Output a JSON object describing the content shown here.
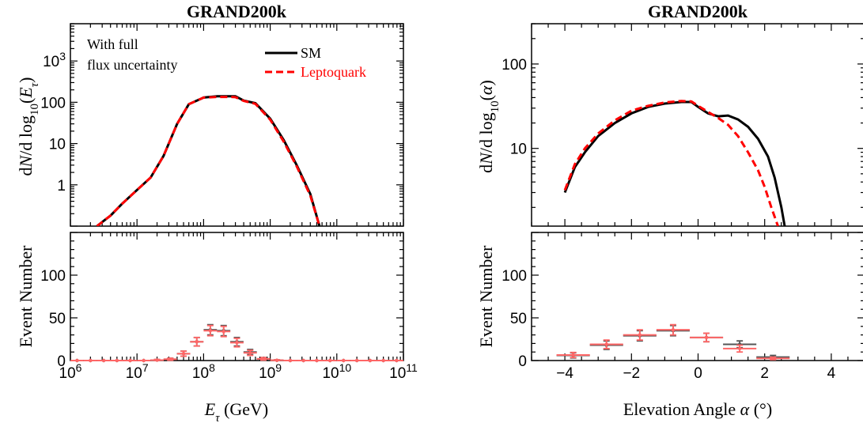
{
  "chart_data": [
    {
      "type": "line",
      "panel": "top-left",
      "title": "GRAND200k",
      "ylabel": "dN/dlog10(Eτ)",
      "xscale": "log",
      "yscale": "log",
      "xlim": [
        1000000.0,
        100000000000.0
      ],
      "ylim": [
        0.1,
        8000
      ],
      "xticks": [
        "10^6",
        "10^7",
        "10^8",
        "10^9",
        "10^10",
        "10^11"
      ],
      "yticks": [
        "1",
        "10",
        "100",
        "10^3"
      ],
      "annotation": [
        "With full",
        "flux uncertainty"
      ],
      "legend": {
        "position": "top-right"
      },
      "series": [
        {
          "name": "SM",
          "color": "#000000",
          "style": "solid",
          "x": [
            2500000.0,
            4000000.0,
            6000000.0,
            10000000.0,
            16000000.0,
            25000000.0,
            40000000.0,
            60000000.0,
            100000000.0,
            160000000.0,
            200000000.0,
            250000000.0,
            300000000.0,
            400000000.0,
            600000000.0,
            1000000000.0,
            1600000000.0,
            2500000000.0,
            4000000000.0,
            5500000000.0
          ],
          "y": [
            0.1,
            0.18,
            0.35,
            0.75,
            1.5,
            5,
            30,
            90,
            130,
            140,
            140,
            140,
            140,
            110,
            95,
            40,
            12,
            3,
            0.6,
            0.1
          ]
        },
        {
          "name": "Leptoquark",
          "color": "#ff0000",
          "style": "dashed",
          "x": [
            2500000.0,
            4000000.0,
            6000000.0,
            10000000.0,
            16000000.0,
            25000000.0,
            40000000.0,
            60000000.0,
            100000000.0,
            160000000.0,
            200000000.0,
            250000000.0,
            300000000.0,
            400000000.0,
            600000000.0,
            1000000000.0,
            1600000000.0,
            2500000000.0,
            4000000000.0,
            5500000000.0
          ],
          "y": [
            0.1,
            0.18,
            0.35,
            0.75,
            1.5,
            5,
            30,
            90,
            130,
            135,
            135,
            135,
            133,
            108,
            92,
            38,
            11,
            2.8,
            0.55,
            0.1
          ]
        }
      ]
    },
    {
      "type": "line",
      "panel": "top-right",
      "title": "GRAND200k",
      "ylabel": "dN/dlog10(α)",
      "xscale": "linear",
      "yscale": "log",
      "xlim": [
        -5,
        5
      ],
      "ylim": [
        1.2,
        300
      ],
      "yticks": [
        "10",
        "100"
      ],
      "series": [
        {
          "name": "SM",
          "color": "#000000",
          "style": "solid",
          "x": [
            -4,
            -3.7,
            -3.4,
            -3,
            -2.5,
            -2,
            -1.5,
            -1,
            -0.5,
            -0.2,
            0,
            0.3,
            0.6,
            0.9,
            1.2,
            1.5,
            1.8,
            2.1,
            2.3,
            2.5,
            2.6
          ],
          "y": [
            3,
            6,
            9,
            14,
            20,
            26,
            31,
            34,
            35.5,
            35.5,
            31,
            26,
            24,
            24.5,
            22,
            18,
            13,
            8,
            4.5,
            2,
            1.2
          ]
        },
        {
          "name": "Leptoquark",
          "color": "#ff0000",
          "style": "dashed",
          "x": [
            -4,
            -3.7,
            -3.4,
            -3,
            -2.5,
            -2,
            -1.5,
            -1,
            -0.5,
            -0.2,
            0,
            0.3,
            0.6,
            0.9,
            1.2,
            1.5,
            1.8,
            2.0,
            2.2,
            2.4
          ],
          "y": [
            3.2,
            6.5,
            10,
            15,
            21.5,
            28,
            32,
            35,
            36.5,
            36,
            32,
            27,
            23,
            19,
            14,
            9,
            5.5,
            3.5,
            2,
            1.2
          ]
        }
      ]
    },
    {
      "type": "scatter",
      "panel": "bottom-left",
      "ylabel": "Event Number",
      "xlabel": "Eτ (GeV)",
      "xscale": "log",
      "xlim": [
        1000000.0,
        100000000000.0
      ],
      "ylim": [
        0,
        150
      ],
      "xticks": [
        "10^6",
        "10^7",
        "10^8",
        "10^9",
        "10^10",
        "10^11"
      ],
      "yticks": [
        "0",
        "50",
        "100"
      ],
      "series": [
        {
          "name": "SM",
          "color": "#555555",
          "x": [
            1260000.0,
            2000000.0,
            3160000.0,
            5000000.0,
            7900000.0,
            12600000.0,
            20000000.0,
            31600000.0,
            50000000.0,
            79000000.0,
            126000000.0,
            200000000.0,
            316000000.0,
            500000000.0,
            790000000.0,
            1260000000.0,
            2000000000.0,
            3160000000.0,
            5000000000.0,
            7900000000.0,
            12600000000.0,
            20000000000.0,
            31600000000.0,
            50000000000.0,
            79000000000.0
          ],
          "y": [
            0,
            0,
            0,
            0,
            0,
            0,
            0.5,
            1.5,
            8,
            22,
            36,
            35,
            22,
            10,
            2,
            0.3,
            0,
            0,
            0,
            0,
            0,
            0,
            0,
            0,
            0
          ],
          "err": [
            0,
            0,
            0,
            0,
            0,
            0,
            0.7,
            1.2,
            3,
            5,
            6,
            6,
            5,
            3,
            1.5,
            0.5,
            0,
            0,
            0,
            0,
            0,
            0,
            0,
            0,
            0
          ]
        },
        {
          "name": "Leptoquark",
          "color": "#ff6666",
          "x": [
            1260000.0,
            2000000.0,
            3160000.0,
            5000000.0,
            7900000.0,
            12600000.0,
            20000000.0,
            31600000.0,
            50000000.0,
            79000000.0,
            126000000.0,
            200000000.0,
            316000000.0,
            500000000.0,
            790000000.0,
            1260000000.0,
            2000000000.0,
            3160000000.0,
            5000000000.0,
            7900000000.0,
            12600000000.0,
            20000000000.0,
            31600000000.0,
            50000000000.0,
            79000000000.0
          ],
          "y": [
            0,
            0,
            0,
            0,
            0,
            0,
            0.5,
            1.5,
            8,
            22,
            35,
            34,
            21,
            9,
            2,
            0.3,
            0,
            0,
            0,
            0,
            0,
            0,
            0,
            0,
            0
          ],
          "err": [
            0,
            0,
            0,
            0,
            0,
            0,
            0.7,
            1.2,
            3,
            5,
            6,
            6,
            5,
            3,
            1.5,
            0.5,
            0,
            0,
            0,
            0,
            0,
            0,
            0,
            0,
            0
          ]
        }
      ]
    },
    {
      "type": "scatter",
      "panel": "bottom-right",
      "ylabel": "Event Number",
      "xlabel": "Elevation Angle α (°)",
      "xscale": "linear",
      "xlim": [
        -5,
        5
      ],
      "ylim": [
        0,
        150
      ],
      "xticks": [
        "−4",
        "−2",
        "0",
        "2",
        "4"
      ],
      "yticks": [
        "0",
        "50",
        "100"
      ],
      "bin_halfwidth": 0.5,
      "series": [
        {
          "name": "SM",
          "color": "#555555",
          "x": [
            -3.75,
            -2.75,
            -1.75,
            -0.75,
            0.25,
            1.25,
            2.25
          ],
          "y": [
            6,
            18,
            29,
            35,
            27,
            19,
            4
          ],
          "err": [
            3,
            5,
            6,
            6,
            5,
            4,
            2
          ]
        },
        {
          "name": "Leptoquark",
          "color": "#ff6666",
          "x": [
            -3.75,
            -2.75,
            -1.75,
            -0.75,
            0.25,
            1.25,
            2.25
          ],
          "y": [
            6.5,
            19,
            30,
            36,
            27,
            14,
            2.5
          ],
          "err": [
            3,
            5,
            6,
            6,
            5,
            4,
            1.5
          ]
        }
      ]
    }
  ]
}
